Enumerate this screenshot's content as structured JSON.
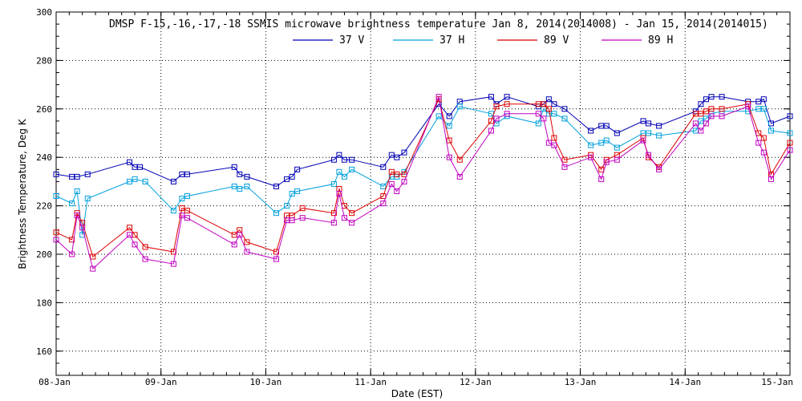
{
  "chart_data": {
    "type": "line",
    "title": "DMSP F-15,-16,-17,-18 SSMIS microwave brightness temperature Jan  8, 2014(2014008) - Jan 15, 2014(2014015)",
    "xlabel": "Date (EST)",
    "ylabel": "Brightness Temperature, Deg K",
    "x_range": [
      "2014-01-08",
      "2014-01-15"
    ],
    "x_ticks": [
      "08-Jan",
      "09-Jan",
      "10-Jan",
      "11-Jan",
      "12-Jan",
      "13-Jan",
      "14-Jan",
      "15-Jan"
    ],
    "ylim": [
      150,
      300
    ],
    "y_ticks": [
      160,
      180,
      200,
      220,
      240,
      260,
      280,
      300
    ],
    "grid": "dotted",
    "legend_position": "top-center",
    "x_unit": "days since 08-Jan",
    "series": [
      {
        "name": "37 V",
        "color": "#0000b4",
        "points": [
          [
            0.0,
            233
          ],
          [
            0.15,
            232
          ],
          [
            0.2,
            232
          ],
          [
            0.3,
            233
          ],
          [
            0.7,
            238
          ],
          [
            0.75,
            236
          ],
          [
            0.8,
            236
          ],
          [
            1.12,
            230
          ],
          [
            1.2,
            233
          ],
          [
            1.25,
            233
          ],
          [
            1.7,
            236
          ],
          [
            1.75,
            233
          ],
          [
            1.82,
            232
          ],
          [
            2.1,
            228
          ],
          [
            2.2,
            231
          ],
          [
            2.25,
            232
          ],
          [
            2.3,
            235
          ],
          [
            2.65,
            239
          ],
          [
            2.7,
            241
          ],
          [
            2.75,
            239
          ],
          [
            2.82,
            239
          ],
          [
            3.12,
            236
          ],
          [
            3.2,
            241
          ],
          [
            3.25,
            240
          ],
          [
            3.32,
            242
          ],
          [
            3.65,
            262
          ],
          [
            3.75,
            257
          ],
          [
            3.85,
            263
          ],
          [
            4.15,
            265
          ],
          [
            4.2,
            262
          ],
          [
            4.3,
            265
          ],
          [
            4.6,
            261
          ],
          [
            4.65,
            262
          ],
          [
            4.7,
            264
          ],
          [
            4.75,
            262
          ],
          [
            4.85,
            260
          ],
          [
            5.1,
            251
          ],
          [
            5.2,
            253
          ],
          [
            5.25,
            253
          ],
          [
            5.35,
            250
          ],
          [
            5.6,
            255
          ],
          [
            5.65,
            254
          ],
          [
            5.75,
            253
          ],
          [
            6.1,
            259
          ],
          [
            6.15,
            262
          ],
          [
            6.2,
            264
          ],
          [
            6.25,
            265
          ],
          [
            6.35,
            265
          ],
          [
            6.6,
            263
          ],
          [
            6.7,
            263
          ],
          [
            6.75,
            264
          ],
          [
            6.82,
            254
          ],
          [
            7.0,
            257
          ]
        ]
      },
      {
        "name": "37 H",
        "color": "#00a0dc",
        "points": [
          [
            0.0,
            224
          ],
          [
            0.15,
            221
          ],
          [
            0.2,
            226
          ],
          [
            0.25,
            208
          ],
          [
            0.3,
            223
          ],
          [
            0.7,
            230
          ],
          [
            0.75,
            231
          ],
          [
            0.85,
            230
          ],
          [
            1.12,
            218
          ],
          [
            1.2,
            223
          ],
          [
            1.25,
            224
          ],
          [
            1.7,
            228
          ],
          [
            1.75,
            227
          ],
          [
            1.82,
            228
          ],
          [
            2.1,
            217
          ],
          [
            2.2,
            220
          ],
          [
            2.25,
            225
          ],
          [
            2.3,
            226
          ],
          [
            2.65,
            229
          ],
          [
            2.7,
            234
          ],
          [
            2.75,
            232
          ],
          [
            2.82,
            235
          ],
          [
            3.12,
            228
          ],
          [
            3.2,
            232
          ],
          [
            3.25,
            232
          ],
          [
            3.32,
            234
          ],
          [
            3.65,
            257
          ],
          [
            3.75,
            253
          ],
          [
            3.85,
            261
          ],
          [
            4.15,
            258
          ],
          [
            4.2,
            254
          ],
          [
            4.3,
            257
          ],
          [
            4.6,
            254
          ],
          [
            4.65,
            260
          ],
          [
            4.7,
            258
          ],
          [
            4.75,
            258
          ],
          [
            4.85,
            256
          ],
          [
            5.1,
            245
          ],
          [
            5.2,
            246
          ],
          [
            5.25,
            247
          ],
          [
            5.35,
            244
          ],
          [
            5.6,
            250
          ],
          [
            5.65,
            250
          ],
          [
            5.75,
            249
          ],
          [
            6.1,
            251
          ],
          [
            6.15,
            255
          ],
          [
            6.2,
            256
          ],
          [
            6.25,
            258
          ],
          [
            6.35,
            259
          ],
          [
            6.6,
            259
          ],
          [
            6.7,
            260
          ],
          [
            6.75,
            260
          ],
          [
            6.82,
            251
          ],
          [
            7.0,
            250
          ]
        ]
      },
      {
        "name": "89 V",
        "color": "#dc0000",
        "points": [
          [
            0.0,
            209
          ],
          [
            0.15,
            206
          ],
          [
            0.2,
            217
          ],
          [
            0.25,
            213
          ],
          [
            0.35,
            199
          ],
          [
            0.7,
            211
          ],
          [
            0.75,
            208
          ],
          [
            0.85,
            203
          ],
          [
            1.12,
            201
          ],
          [
            1.2,
            219
          ],
          [
            1.25,
            218
          ],
          [
            1.7,
            208
          ],
          [
            1.75,
            210
          ],
          [
            1.82,
            205
          ],
          [
            2.1,
            201
          ],
          [
            2.2,
            216
          ],
          [
            2.25,
            216
          ],
          [
            2.35,
            219
          ],
          [
            2.65,
            217
          ],
          [
            2.7,
            227
          ],
          [
            2.75,
            220
          ],
          [
            2.82,
            217
          ],
          [
            3.12,
            224
          ],
          [
            3.2,
            234
          ],
          [
            3.25,
            233
          ],
          [
            3.32,
            233
          ],
          [
            3.65,
            264
          ],
          [
            3.75,
            247
          ],
          [
            3.85,
            239
          ],
          [
            4.15,
            255
          ],
          [
            4.2,
            261
          ],
          [
            4.3,
            262
          ],
          [
            4.6,
            262
          ],
          [
            4.65,
            262
          ],
          [
            4.7,
            260
          ],
          [
            4.75,
            248
          ],
          [
            4.85,
            239
          ],
          [
            5.1,
            241
          ],
          [
            5.2,
            235
          ],
          [
            5.25,
            239
          ],
          [
            5.35,
            241
          ],
          [
            5.6,
            248
          ],
          [
            5.65,
            240
          ],
          [
            5.75,
            236
          ],
          [
            6.1,
            258
          ],
          [
            6.15,
            258
          ],
          [
            6.2,
            259
          ],
          [
            6.25,
            260
          ],
          [
            6.35,
            260
          ],
          [
            6.6,
            262
          ],
          [
            6.7,
            250
          ],
          [
            6.75,
            248
          ],
          [
            6.82,
            233
          ],
          [
            7.0,
            246
          ]
        ]
      },
      {
        "name": "89 H",
        "color": "#c000c0",
        "points": [
          [
            0.0,
            206
          ],
          [
            0.15,
            200
          ],
          [
            0.2,
            216
          ],
          [
            0.25,
            211
          ],
          [
            0.35,
            194
          ],
          [
            0.7,
            208
          ],
          [
            0.75,
            204
          ],
          [
            0.85,
            198
          ],
          [
            1.12,
            196
          ],
          [
            1.2,
            216
          ],
          [
            1.25,
            215
          ],
          [
            1.7,
            204
          ],
          [
            1.75,
            208
          ],
          [
            1.82,
            201
          ],
          [
            2.1,
            198
          ],
          [
            2.2,
            214
          ],
          [
            2.25,
            214
          ],
          [
            2.35,
            215
          ],
          [
            2.65,
            213
          ],
          [
            2.7,
            225
          ],
          [
            2.75,
            215
          ],
          [
            2.82,
            213
          ],
          [
            3.12,
            221
          ],
          [
            3.2,
            229
          ],
          [
            3.25,
            226
          ],
          [
            3.32,
            230
          ],
          [
            3.65,
            265
          ],
          [
            3.75,
            240
          ],
          [
            3.85,
            232
          ],
          [
            4.15,
            251
          ],
          [
            4.2,
            256
          ],
          [
            4.3,
            258
          ],
          [
            4.6,
            258
          ],
          [
            4.65,
            256
          ],
          [
            4.7,
            246
          ],
          [
            4.75,
            245
          ],
          [
            4.85,
            236
          ],
          [
            5.1,
            240
          ],
          [
            5.2,
            231
          ],
          [
            5.25,
            238
          ],
          [
            5.35,
            239
          ],
          [
            5.6,
            247
          ],
          [
            5.65,
            241
          ],
          [
            5.75,
            235
          ],
          [
            6.1,
            254
          ],
          [
            6.15,
            251
          ],
          [
            6.2,
            254
          ],
          [
            6.25,
            257
          ],
          [
            6.35,
            257
          ],
          [
            6.6,
            261
          ],
          [
            6.7,
            246
          ],
          [
            6.75,
            242
          ],
          [
            6.82,
            231
          ],
          [
            7.0,
            243
          ]
        ]
      }
    ]
  }
}
